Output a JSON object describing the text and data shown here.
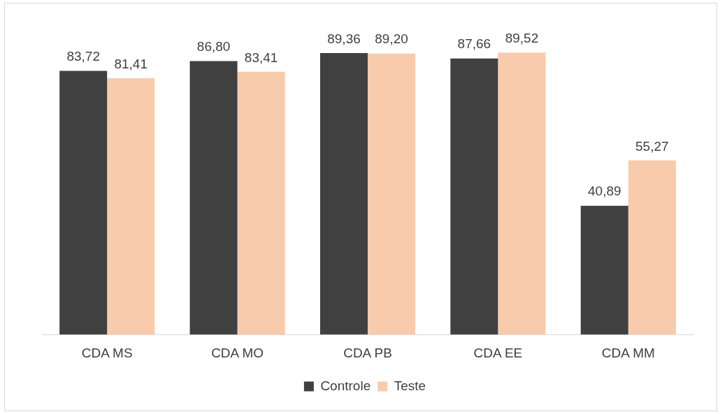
{
  "chart_data": {
    "type": "bar",
    "categories": [
      "CDA MS",
      "CDA MO",
      "CDA PB",
      "CDA EE",
      "CDA MM"
    ],
    "series": [
      {
        "name": "Controle",
        "color": "#404040",
        "values": [
          83.72,
          86.8,
          89.36,
          87.66,
          40.89
        ],
        "value_labels": [
          "83,72",
          "86,80",
          "89,36",
          "87,66",
          "40,89"
        ]
      },
      {
        "name": "Teste",
        "color": "#f8cbad",
        "values": [
          81.41,
          83.41,
          89.2,
          89.52,
          55.27
        ],
        "value_labels": [
          "81,41",
          "83,41",
          "89,20",
          "89,52",
          "55,27"
        ]
      }
    ],
    "legend": "bottom"
  }
}
